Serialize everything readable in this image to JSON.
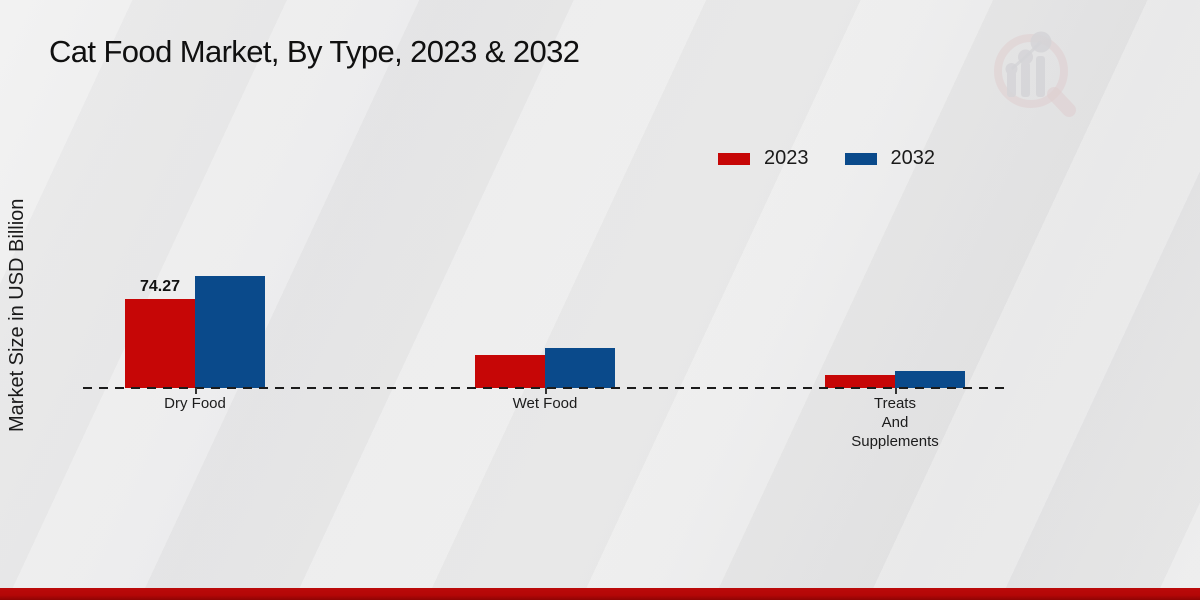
{
  "chart_data": {
    "type": "bar",
    "title": "Cat Food Market, By Type, 2023 & 2032",
    "ylabel": "Market Size in USD Billion",
    "categories": [
      "Dry Food",
      "Wet Food",
      "Treats\nAnd\nSupplements"
    ],
    "series": [
      {
        "name": "2023",
        "color": "#c60606",
        "values": [
          74.27,
          27.6,
          10.9
        ],
        "value_labels": [
          "74.27",
          "",
          ""
        ]
      },
      {
        "name": "2032",
        "color": "#0a4a8b",
        "values": [
          93.5,
          33.5,
          14.3
        ],
        "value_labels": [
          "",
          "",
          ""
        ]
      }
    ],
    "ylim": [
      0,
      100
    ],
    "grid": false,
    "legend_position": "top-right",
    "baseline_style": "dashed",
    "shown_value_labels": [
      "74.27"
    ]
  },
  "watermark_icon": "magnifier-growth-chart",
  "footer": {
    "accent_color": "#b30707"
  }
}
